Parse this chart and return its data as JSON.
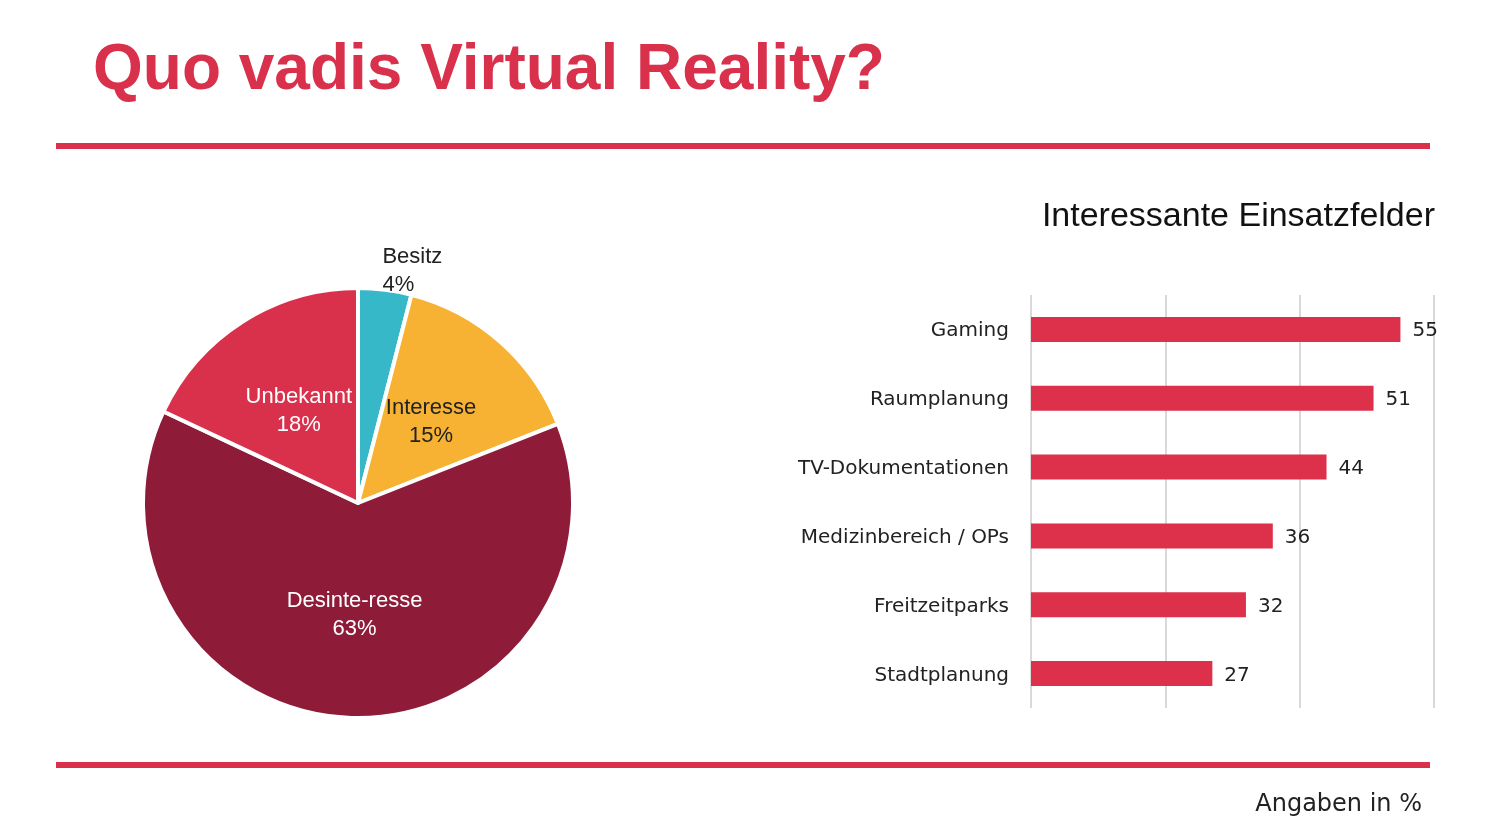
{
  "chart_data": [
    {
      "type": "pie",
      "title": "Quo vadis Virtual Reality?",
      "categories": [
        "Besitz",
        "Interesse",
        "Desinte-resse",
        "Unbekannt"
      ],
      "values": [
        4,
        15,
        63,
        18
      ],
      "value_labels": [
        "4%",
        "15%",
        "63%",
        "18%"
      ],
      "colors": [
        "#36b8c8",
        "#f7b233",
        "#8e1c38",
        "#d9304c"
      ]
    },
    {
      "type": "bar",
      "orientation": "horizontal",
      "title": "Interessante Einsatzfelder",
      "categories": [
        "Gaming",
        "Raumplanung",
        "TV-Dokumentationen",
        "Medizinbereich / OPs",
        "Freitzeitparks",
        "Stadtplanung"
      ],
      "values": [
        55,
        51,
        44,
        36,
        32,
        27
      ],
      "color": "#dc304b",
      "xlim": [
        0,
        60
      ],
      "xticks": [
        {
          "value": 0,
          "label": null
        },
        {
          "value": 20,
          "label": null
        },
        {
          "value": 40,
          "label": null
        },
        {
          "value": 60,
          "label": null
        }
      ],
      "grid": "x",
      "tick_labels": "y",
      "data_labels": true,
      "annotations": [
        "Angaben in %"
      ]
    }
  ]
}
